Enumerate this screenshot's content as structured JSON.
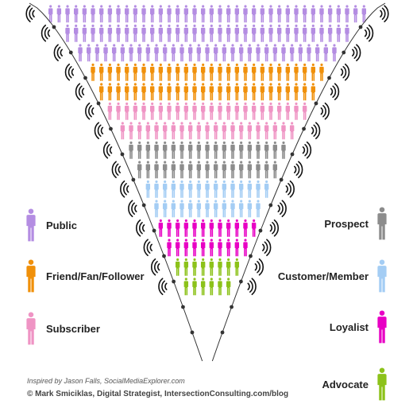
{
  "colors": {
    "public": "#b48de2",
    "fan": "#f0900a",
    "subscriber": "#ef94c4",
    "prospect": "#8c8c8c",
    "customer": "#a4cdf4",
    "loyalist": "#e800c4",
    "advocate": "#8cc21a",
    "line": "#333333"
  },
  "legend_left": [
    {
      "key": "public",
      "label": "Public",
      "icon": "person-icon"
    },
    {
      "key": "fan",
      "label": "Friend/Fan/Follower",
      "icon": "person-icon"
    },
    {
      "key": "subscriber",
      "label": "Subscriber",
      "icon": "person-icon"
    }
  ],
  "legend_right": [
    {
      "key": "prospect",
      "label": "Prospect",
      "icon": "person-icon"
    },
    {
      "key": "customer",
      "label": "Customer/Member",
      "icon": "person-icon"
    },
    {
      "key": "loyalist",
      "label": "Loyalist",
      "icon": "person-icon"
    },
    {
      "key": "advocate",
      "label": "Advocate",
      "icon": "person-icon"
    }
  ],
  "funnel_levels": [
    {
      "key": "public",
      "rows": 3
    },
    {
      "key": "fan",
      "rows": 2
    },
    {
      "key": "subscriber",
      "rows": 2
    },
    {
      "key": "prospect",
      "rows": 2
    },
    {
      "key": "customer",
      "rows": 2
    },
    {
      "key": "loyalist",
      "rows": 2
    },
    {
      "key": "advocate",
      "rows": 2
    }
  ],
  "credits": {
    "inspired": "Inspired by Jason Falls, SocialMediaExplorer.com",
    "author": "© Mark Smiciklas, Digital Strategist, IntersectionConsulting.com/blog"
  }
}
